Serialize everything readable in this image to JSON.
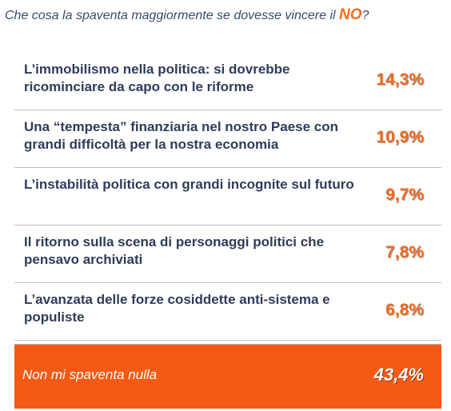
{
  "question": {
    "prefix": "Che cosa la spaventa maggiormente se dovesse vincere il ",
    "emphasis": "NO",
    "suffix": "?"
  },
  "colors": {
    "accent": "#f26a21",
    "total_bar": "#f45a14",
    "text": "#2f3c5a",
    "divider": "#bfbfbf"
  },
  "chart_data": {
    "type": "table",
    "title": "Che cosa la spaventa maggiormente se dovesse vincere il NO?",
    "rows": [
      {
        "label": "L’immobilismo nella politica: si dovrebbe ricominciare da capo con le riforme",
        "value": 14.3,
        "display": "14,3%"
      },
      {
        "label": "Una “tempesta” finanziaria nel nostro Paese con grandi difficoltà per la nostra economia",
        "value": 10.9,
        "display": "10,9%"
      },
      {
        "label": "L’instabilità politica con grandi incognite sul futuro",
        "value": 9.7,
        "display": "9,7%"
      },
      {
        "label": "Il ritorno sulla scena di personaggi politici che pensavo archiviati",
        "value": 7.8,
        "display": "7,8%"
      },
      {
        "label": "L’avanzata delle forze cosiddette anti-sistema e populiste",
        "value": 6.8,
        "display": "6,8%"
      }
    ],
    "highlight": {
      "label": "Non mi spaventa nulla",
      "value": 43.4,
      "display": "43,4%"
    }
  }
}
